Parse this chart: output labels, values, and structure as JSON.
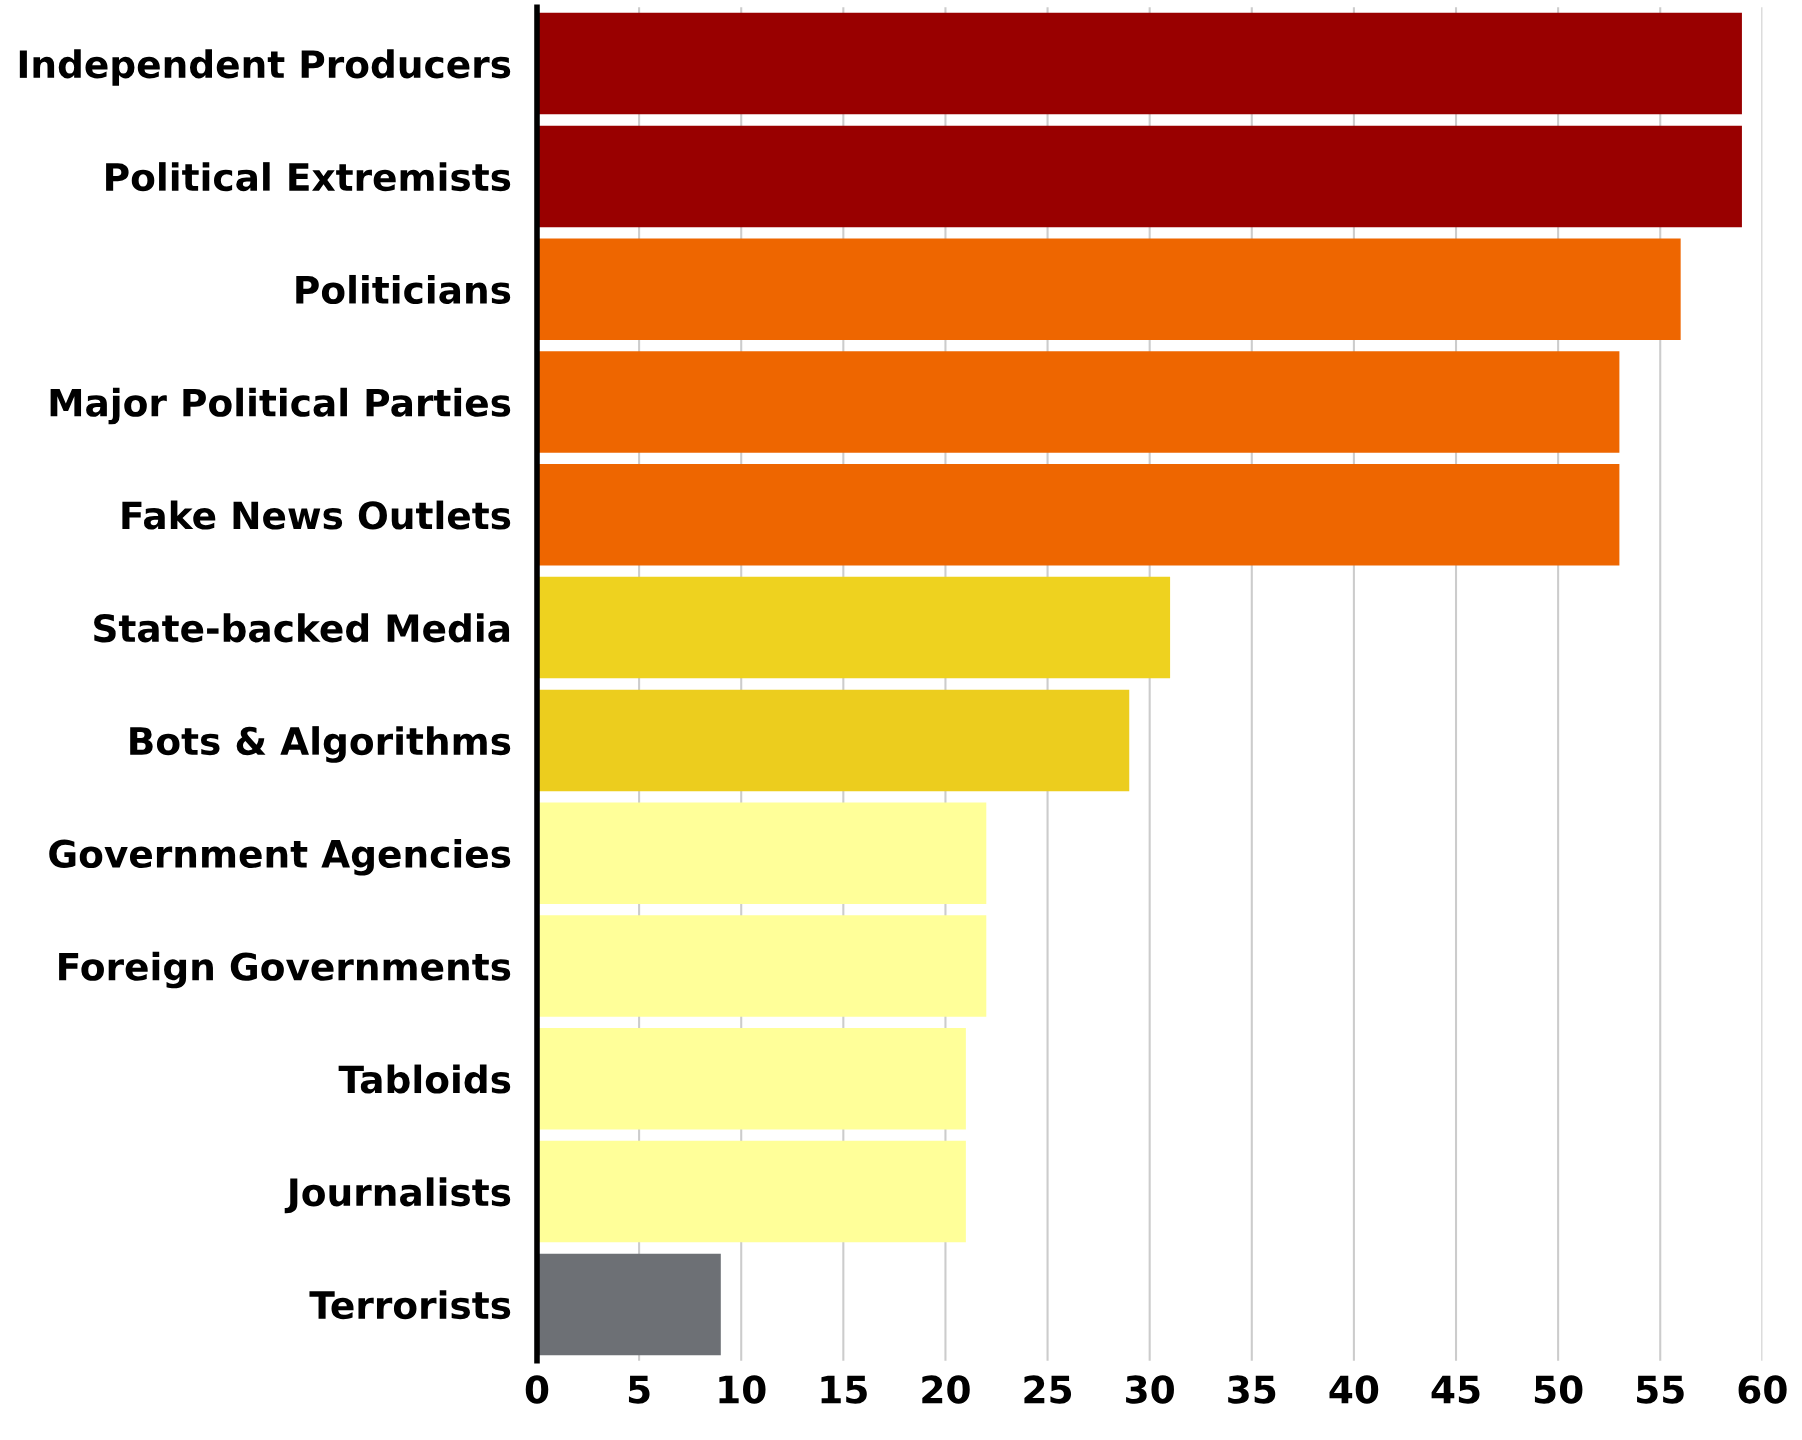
{
  "chart_data": {
    "type": "bar",
    "orientation": "horizontal",
    "categories": [
      "Independent Producers",
      "Political Extremists",
      "Politicians",
      "Major Political Parties",
      "Fake News Outlets",
      "State-backed Media",
      "Bots & Algorithms",
      "Government Agencies",
      "Foreign Governments",
      "Tabloids",
      "Journalists",
      "Terrorists"
    ],
    "values": [
      59,
      59,
      56,
      53,
      53,
      31,
      29,
      22,
      22,
      21,
      21,
      9
    ],
    "colors": [
      "#990000",
      "#990000",
      "#ee6600",
      "#ee6600",
      "#ee6600",
      "#eed21f",
      "#eccd1e",
      "#ffff99",
      "#ffff99",
      "#ffff99",
      "#ffff99",
      "#6d7075"
    ],
    "xlim": [
      0,
      60
    ],
    "xticks": [
      0,
      5,
      10,
      15,
      20,
      25,
      30,
      35,
      40,
      45,
      50,
      55,
      60
    ],
    "grid": "x",
    "legend": false
  }
}
